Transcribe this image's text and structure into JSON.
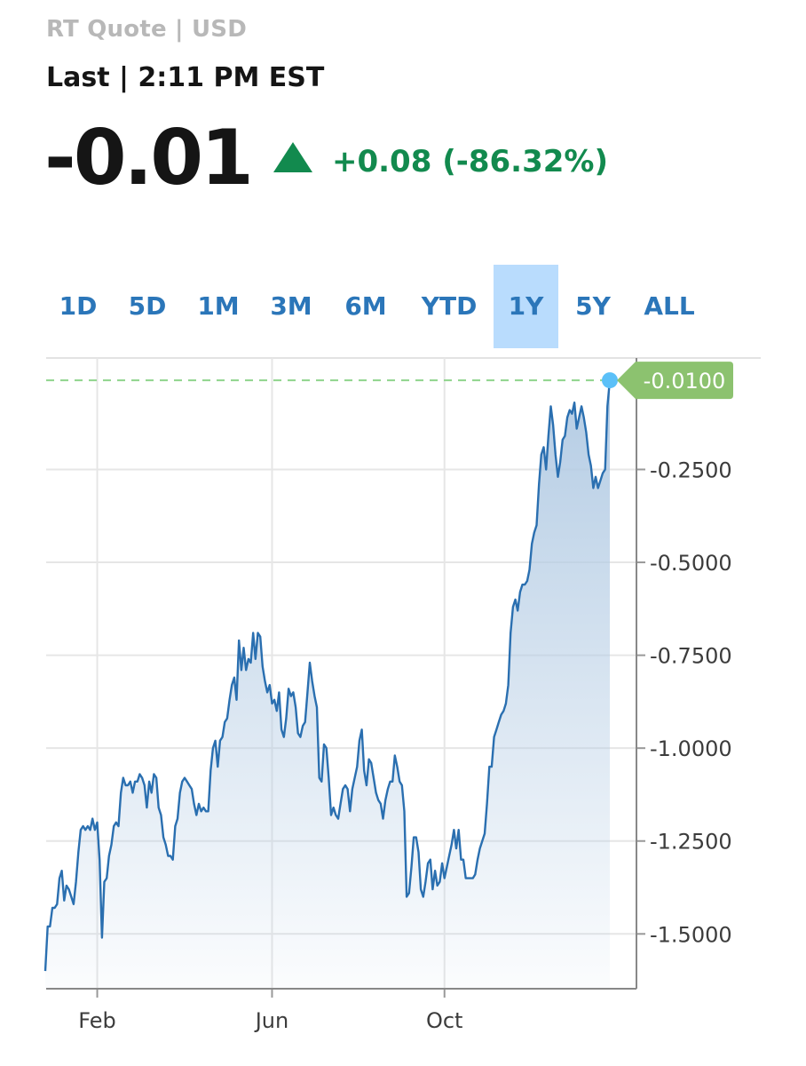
{
  "header": {
    "quote_label": "RT Quote | USD",
    "last_label": "Last | 2:11 PM EST",
    "price": "-0.01",
    "change": "+0.08 (-86.32%)",
    "direction_icon": "triangle-up-icon",
    "up_color": "#128a4e"
  },
  "tabs": [
    "1D",
    "5D",
    "1M",
    "3M",
    "6M",
    "YTD",
    "1Y",
    "5Y",
    "ALL"
  ],
  "active_tab": "1Y",
  "chart_data": {
    "type": "area",
    "x_labels": [
      "Feb",
      "Jun",
      "Oct"
    ],
    "y_ticks": [
      -0.25,
      -0.5,
      -0.75,
      -1.0,
      -1.25,
      -1.5
    ],
    "y_tick_labels": [
      "-0.2500",
      "-0.5000",
      "-0.7500",
      "-1.0000",
      "-1.2500",
      "-1.5000"
    ],
    "ylim": [
      -1.6475,
      0.05
    ],
    "last_value_label": "-0.0100",
    "last_value": -0.01,
    "line_color": "#2a6fb0",
    "fill_color": "#b4cce4",
    "reference_line_color": "#8fd48c",
    "badge_color": "#8cc26f",
    "marker_color": "#5bc0f8",
    "grid": true,
    "x_label_index": [
      22,
      96,
      169
    ],
    "values": [
      -1.6,
      -1.48,
      -1.48,
      -1.43,
      -1.43,
      -1.42,
      -1.35,
      -1.33,
      -1.41,
      -1.37,
      -1.38,
      -1.4,
      -1.42,
      -1.36,
      -1.28,
      -1.22,
      -1.21,
      -1.22,
      -1.21,
      -1.22,
      -1.19,
      -1.22,
      -1.2,
      -1.3,
      -1.51,
      -1.36,
      -1.35,
      -1.29,
      -1.26,
      -1.21,
      -1.2,
      -1.21,
      -1.12,
      -1.08,
      -1.1,
      -1.1,
      -1.09,
      -1.12,
      -1.09,
      -1.09,
      -1.07,
      -1.08,
      -1.1,
      -1.16,
      -1.09,
      -1.12,
      -1.07,
      -1.08,
      -1.16,
      -1.18,
      -1.24,
      -1.26,
      -1.29,
      -1.29,
      -1.3,
      -1.21,
      -1.19,
      -1.12,
      -1.09,
      -1.08,
      -1.09,
      -1.1,
      -1.11,
      -1.15,
      -1.18,
      -1.15,
      -1.17,
      -1.16,
      -1.17,
      -1.17,
      -1.06,
      -1.0,
      -0.98,
      -1.05,
      -0.98,
      -0.97,
      -0.93,
      -0.92,
      -0.87,
      -0.83,
      -0.81,
      -0.87,
      -0.71,
      -0.79,
      -0.73,
      -0.79,
      -0.76,
      -0.77,
      -0.69,
      -0.76,
      -0.69,
      -0.7,
      -0.78,
      -0.82,
      -0.85,
      -0.83,
      -0.88,
      -0.87,
      -0.9,
      -0.85,
      -0.95,
      -0.97,
      -0.92,
      -0.84,
      -0.86,
      -0.85,
      -0.89,
      -0.96,
      -0.97,
      -0.94,
      -0.93,
      -0.85,
      -0.77,
      -0.82,
      -0.86,
      -0.89,
      -1.08,
      -1.09,
      -0.99,
      -1.0,
      -1.08,
      -1.18,
      -1.16,
      -1.18,
      -1.19,
      -1.15,
      -1.11,
      -1.1,
      -1.11,
      -1.17,
      -1.11,
      -1.08,
      -1.05,
      -0.98,
      -0.95,
      -1.06,
      -1.1,
      -1.03,
      -1.04,
      -1.08,
      -1.12,
      -1.14,
      -1.15,
      -1.19,
      -1.14,
      -1.11,
      -1.09,
      -1.09,
      -1.02,
      -1.05,
      -1.09,
      -1.1,
      -1.17,
      -1.4,
      -1.39,
      -1.32,
      -1.24,
      -1.24,
      -1.28,
      -1.38,
      -1.4,
      -1.36,
      -1.31,
      -1.3,
      -1.38,
      -1.33,
      -1.37,
      -1.36,
      -1.31,
      -1.35,
      -1.32,
      -1.29,
      -1.26,
      -1.22,
      -1.27,
      -1.22,
      -1.3,
      -1.3,
      -1.35,
      -1.35,
      -1.35,
      -1.35,
      -1.34,
      -1.3,
      -1.27,
      -1.25,
      -1.23,
      -1.15,
      -1.05,
      -1.05,
      -0.97,
      -0.95,
      -0.93,
      -0.91,
      -0.9,
      -0.88,
      -0.83,
      -0.69,
      -0.62,
      -0.6,
      -0.63,
      -0.58,
      -0.56,
      -0.56,
      -0.55,
      -0.52,
      -0.45,
      -0.42,
      -0.4,
      -0.29,
      -0.21,
      -0.19,
      -0.25,
      -0.16,
      -0.08,
      -0.13,
      -0.21,
      -0.27,
      -0.23,
      -0.17,
      -0.16,
      -0.11,
      -0.09,
      -0.1,
      -0.07,
      -0.14,
      -0.11,
      -0.08,
      -0.11,
      -0.15,
      -0.21,
      -0.24,
      -0.3,
      -0.27,
      -0.3,
      -0.28,
      -0.26,
      -0.25,
      -0.08,
      -0.01
    ]
  }
}
